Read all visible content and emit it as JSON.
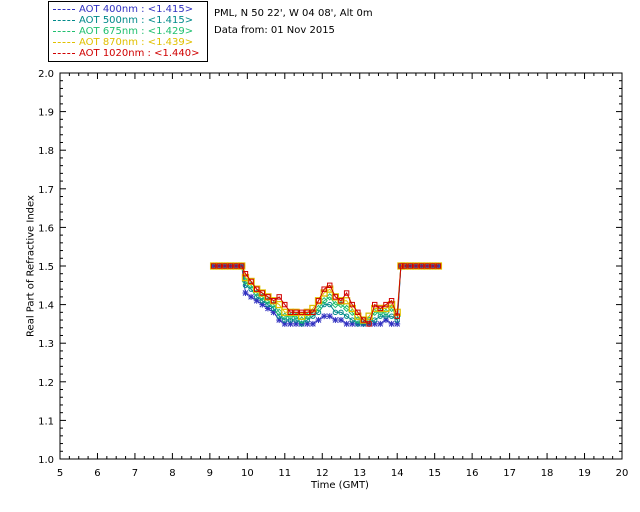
{
  "header": {
    "site": "PML, N 50 22', W 04 08', Alt 0m",
    "date_line": "Data from: 01 Nov 2015"
  },
  "legend": [
    {
      "label": "AOT  400nm : <1.415>",
      "color": "#3030c0"
    },
    {
      "label": "AOT  500nm : <1.415>",
      "color": "#008a8a"
    },
    {
      "label": "AOT  675nm : <1.429>",
      "color": "#20c070"
    },
    {
      "label": "AOT  870nm : <1.439>",
      "color": "#e0c000"
    },
    {
      "label": "AOT 1020nm : <1.440>",
      "color": "#d00000"
    }
  ],
  "chart_data": {
    "type": "scatter",
    "xlabel": "Time (GMT)",
    "ylabel": "Real Part of Refractive Index",
    "xlim": [
      5,
      20
    ],
    "ylim": [
      1.0,
      2.0
    ],
    "x_ticks": [
      5,
      6,
      7,
      8,
      9,
      10,
      11,
      12,
      13,
      14,
      15,
      16,
      17,
      18,
      19,
      20
    ],
    "y_ticks": [
      "1.0",
      "1.1",
      "1.2",
      "1.3",
      "1.4",
      "1.5",
      "1.6",
      "1.7",
      "1.8",
      "1.9",
      "2.0"
    ],
    "x": [
      9.1,
      9.25,
      9.4,
      9.55,
      9.7,
      9.85,
      9.95,
      10.1,
      10.25,
      10.4,
      10.55,
      10.7,
      10.85,
      11.0,
      11.15,
      11.3,
      11.45,
      11.6,
      11.75,
      11.9,
      12.05,
      12.2,
      12.35,
      12.5,
      12.65,
      12.8,
      12.95,
      13.1,
      13.25,
      13.4,
      13.55,
      13.7,
      13.85,
      14.0,
      14.1,
      14.2,
      14.35,
      14.5,
      14.65,
      14.8,
      14.95,
      15.1
    ],
    "series": [
      {
        "name": "AOT  400nm : <1.415>",
        "color": "#3030c0",
        "y": [
          1.5,
          1.5,
          1.5,
          1.5,
          1.5,
          1.5,
          1.43,
          1.42,
          1.41,
          1.4,
          1.39,
          1.38,
          1.36,
          1.35,
          1.35,
          1.35,
          1.35,
          1.35,
          1.35,
          1.36,
          1.37,
          1.37,
          1.36,
          1.36,
          1.35,
          1.35,
          1.35,
          1.35,
          1.35,
          1.35,
          1.35,
          1.36,
          1.35,
          1.35,
          1.5,
          1.5,
          1.5,
          1.5,
          1.5,
          1.5,
          1.5,
          1.5
        ]
      },
      {
        "name": "AOT  500nm : <1.415>",
        "color": "#008a8a",
        "y": [
          1.5,
          1.5,
          1.5,
          1.5,
          1.5,
          1.5,
          1.45,
          1.44,
          1.42,
          1.41,
          1.4,
          1.39,
          1.37,
          1.36,
          1.36,
          1.36,
          1.35,
          1.36,
          1.37,
          1.38,
          1.4,
          1.4,
          1.38,
          1.38,
          1.37,
          1.36,
          1.35,
          1.35,
          1.35,
          1.36,
          1.37,
          1.37,
          1.37,
          1.36,
          1.5,
          1.5,
          1.5,
          1.5,
          1.5,
          1.5,
          1.5,
          1.5
        ]
      },
      {
        "name": "AOT  675nm : <1.429>",
        "color": "#20c070",
        "y": [
          1.5,
          1.5,
          1.5,
          1.5,
          1.5,
          1.5,
          1.46,
          1.45,
          1.43,
          1.42,
          1.41,
          1.4,
          1.38,
          1.37,
          1.37,
          1.37,
          1.36,
          1.37,
          1.38,
          1.39,
          1.41,
          1.42,
          1.4,
          1.4,
          1.39,
          1.38,
          1.36,
          1.36,
          1.36,
          1.38,
          1.38,
          1.38,
          1.39,
          1.37,
          1.5,
          1.5,
          1.5,
          1.5,
          1.5,
          1.5,
          1.5,
          1.5
        ]
      },
      {
        "name": "AOT  870nm : <1.439>",
        "color": "#e0c000",
        "y": [
          1.5,
          1.5,
          1.5,
          1.5,
          1.5,
          1.5,
          1.47,
          1.46,
          1.44,
          1.43,
          1.42,
          1.41,
          1.4,
          1.38,
          1.38,
          1.38,
          1.37,
          1.38,
          1.39,
          1.41,
          1.43,
          1.44,
          1.42,
          1.41,
          1.41,
          1.39,
          1.37,
          1.36,
          1.37,
          1.39,
          1.39,
          1.39,
          1.4,
          1.38,
          1.5,
          1.5,
          1.5,
          1.5,
          1.5,
          1.5,
          1.5,
          1.5
        ]
      },
      {
        "name": "AOT 1020nm : <1.440>",
        "color": "#d00000",
        "y": [
          1.5,
          1.5,
          1.5,
          1.5,
          1.5,
          1.5,
          1.48,
          1.46,
          1.44,
          1.43,
          1.42,
          1.41,
          1.42,
          1.4,
          1.38,
          1.38,
          1.38,
          1.38,
          1.38,
          1.41,
          1.44,
          1.45,
          1.42,
          1.41,
          1.43,
          1.4,
          1.38,
          1.36,
          1.35,
          1.4,
          1.39,
          1.4,
          1.41,
          1.37,
          1.5,
          1.5,
          1.5,
          1.5,
          1.5,
          1.5,
          1.5,
          1.5
        ]
      }
    ]
  }
}
